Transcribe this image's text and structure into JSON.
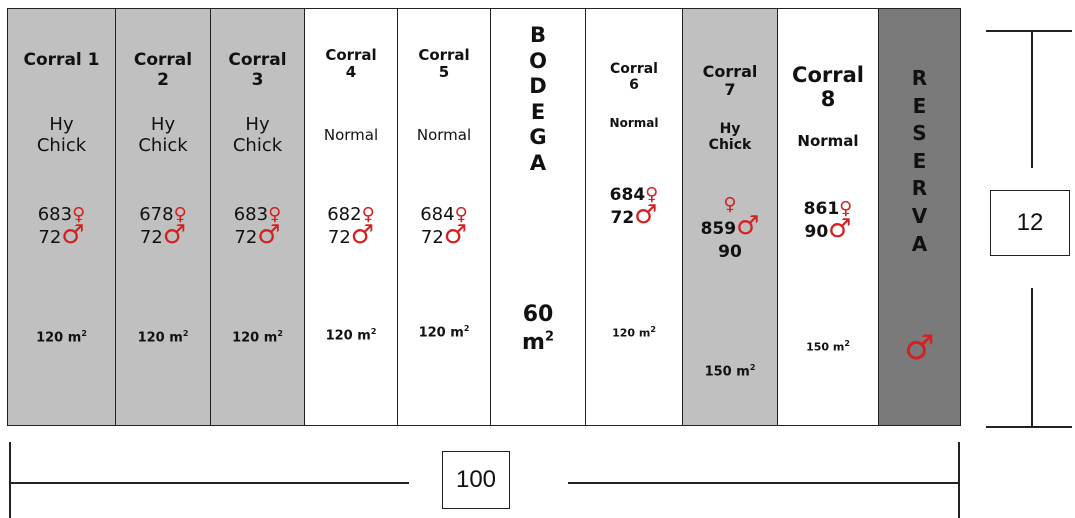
{
  "corrals": [
    {
      "name": "Corral 1",
      "type": "Hy\nChick",
      "females": "683",
      "males": "72",
      "area": "120 m"
    },
    {
      "name": "Corral\n2",
      "type": "Hy\nChick",
      "females": "678",
      "males": "72",
      "area": "120 m"
    },
    {
      "name": "Corral\n3",
      "type": "Hy\nChick",
      "females": "683",
      "males": "72",
      "area": "120 m"
    },
    {
      "name": "Corral\n4",
      "type": "Normal",
      "females": "682",
      "males": "72",
      "area": "120 m"
    },
    {
      "name": "Corral\n5",
      "type": "Normal",
      "females": "684",
      "males": "72",
      "area": "120 m"
    },
    {
      "name": "Corral\n6",
      "type": "Normal",
      "females": "684",
      "males": "72",
      "area": "120 m"
    },
    {
      "name": "Corral\n7",
      "type": "Hy\nChick",
      "females": "859",
      "males": "90",
      "area": "150 m"
    },
    {
      "name": "Corral\n8",
      "type": "Normal",
      "females": "861",
      "males": "90",
      "area": "150 m"
    }
  ],
  "bodega": {
    "letters": "B\nO\nD\nE\nG\nA",
    "area": "60\nm"
  },
  "reserva": {
    "letters": "R\nE\nS\nE\nR\nV\nA"
  },
  "symbols": {
    "female": "♀",
    "male": "♂",
    "sup2": "2"
  },
  "dimensions": {
    "width": "100",
    "depth": "12"
  },
  "colors": {
    "gray": "#c0c0c0",
    "dark": "#7a7a7a",
    "symbol": "#d42020"
  }
}
